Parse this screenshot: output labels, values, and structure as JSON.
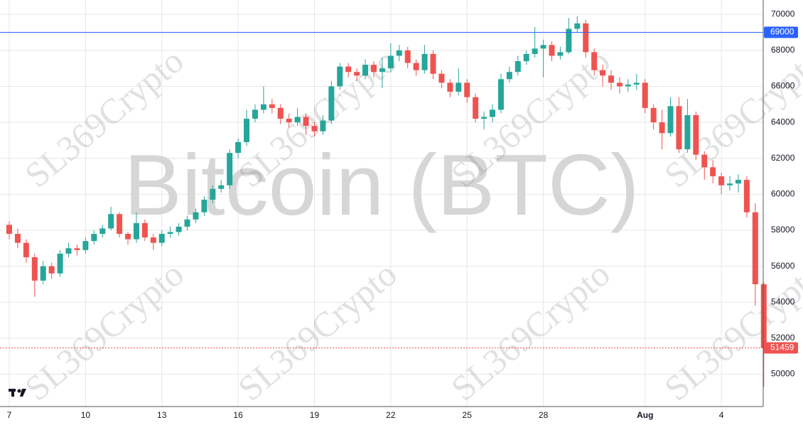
{
  "chart_data": {
    "type": "candlestick",
    "watermark": "Bitcoin (BTC)",
    "watermark_secondary": "SL369Crypto",
    "categories": [
      "7",
      null,
      null,
      null,
      null,
      null,
      null,
      null,
      null,
      "10",
      null,
      null,
      null,
      null,
      null,
      null,
      null,
      null,
      "13",
      null,
      null,
      null,
      null,
      null,
      null,
      null,
      null,
      "16",
      null,
      null,
      null,
      null,
      null,
      null,
      null,
      null,
      "19",
      null,
      null,
      null,
      null,
      null,
      null,
      null,
      null,
      "22",
      null,
      null,
      null,
      null,
      null,
      null,
      null,
      null,
      "25",
      null,
      null,
      null,
      null,
      null,
      null,
      null,
      null,
      "28",
      null,
      null,
      null,
      null,
      null,
      null,
      null,
      null,
      null,
      null,
      null,
      "Aug",
      null,
      null,
      null,
      null,
      null,
      null,
      null,
      null,
      "4",
      null,
      null,
      null,
      null,
      null
    ],
    "open": [
      58300,
      57800,
      57300,
      56500,
      55200,
      56000,
      55600,
      56700,
      57000,
      56900,
      57400,
      57800,
      58100,
      58900,
      57800,
      57500,
      58400,
      57600,
      57300,
      57800,
      57900,
      58200,
      58600,
      59000,
      59700,
      60300,
      60500,
      62300,
      62900,
      64200,
      64700,
      65000,
      64800,
      64200,
      64000,
      64300,
      63800,
      63500,
      64100,
      66000,
      67100,
      66800,
      66600,
      67200,
      66800,
      67000,
      67700,
      68000,
      67300,
      66900,
      67800,
      66700,
      66200,
      65700,
      66200,
      65400,
      64200,
      64300,
      64700,
      66400,
      66800,
      67400,
      67800,
      68100,
      68300,
      67700,
      67900,
      69200,
      69500,
      67900,
      66900,
      66600,
      66200,
      66000,
      66100,
      66200,
      64800,
      64000,
      63400,
      64900,
      62500,
      64400,
      62200,
      61500,
      61000,
      60500,
      60600,
      60800,
      59000,
      55000
    ],
    "high": [
      58500,
      58100,
      57500,
      56700,
      56300,
      56200,
      56900,
      57300,
      57200,
      57600,
      58000,
      58300,
      59300,
      59000,
      57900,
      59000,
      58600,
      57800,
      58000,
      58200,
      58400,
      58800,
      59200,
      59900,
      60500,
      60800,
      62500,
      63100,
      64700,
      65000,
      66000,
      65300,
      65000,
      64500,
      64800,
      64500,
      64000,
      64400,
      66300,
      67300,
      67300,
      67000,
      67500,
      67400,
      67600,
      68400,
      68300,
      68200,
      67500,
      68300,
      68000,
      66900,
      66400,
      67000,
      66400,
      65600,
      64600,
      65000,
      66700,
      67100,
      67700,
      68000,
      69300,
      68600,
      68500,
      68200,
      69800,
      69900,
      69700,
      68100,
      67200,
      66900,
      66500,
      66400,
      66700,
      66400,
      65000,
      64700,
      65400,
      65400,
      65300,
      64600,
      62400,
      61900,
      61200,
      61000,
      61100,
      61000,
      59500,
      55100
    ],
    "low": [
      57500,
      57000,
      56200,
      54300,
      55000,
      55300,
      55400,
      56500,
      56600,
      56700,
      57200,
      57600,
      58000,
      57600,
      57200,
      57300,
      57400,
      56900,
      57100,
      57600,
      57700,
      58000,
      58400,
      58800,
      59500,
      60100,
      60300,
      62000,
      62700,
      64000,
      64500,
      64500,
      63900,
      63700,
      63800,
      63300,
      63200,
      63300,
      63900,
      65800,
      66500,
      66300,
      66400,
      66500,
      65900,
      66800,
      67400,
      67000,
      66600,
      66700,
      66400,
      65900,
      65400,
      65500,
      65100,
      64000,
      63600,
      64000,
      64500,
      66200,
      66600,
      67200,
      67600,
      66500,
      67400,
      67500,
      67800,
      69000,
      67600,
      66600,
      66000,
      65800,
      65600,
      65700,
      65800,
      64500,
      63600,
      62500,
      63200,
      62300,
      62300,
      61900,
      60800,
      60600,
      60000,
      60200,
      60100,
      58700,
      53800,
      49300
    ],
    "close": [
      57800,
      57300,
      56500,
      55200,
      56000,
      55600,
      56700,
      57000,
      56900,
      57400,
      57800,
      58100,
      58900,
      57800,
      57500,
      58400,
      57600,
      57300,
      57800,
      57900,
      58200,
      58600,
      59000,
      59700,
      60300,
      60500,
      62300,
      62900,
      64200,
      64700,
      65000,
      64800,
      64200,
      64000,
      64300,
      63800,
      63500,
      64100,
      66000,
      67100,
      66800,
      66600,
      67200,
      66800,
      67000,
      67700,
      68000,
      67300,
      66900,
      67800,
      66700,
      66200,
      65700,
      66200,
      65400,
      64200,
      64300,
      64700,
      66400,
      66800,
      67400,
      67800,
      68100,
      68300,
      67700,
      67900,
      69200,
      69500,
      67900,
      66900,
      66600,
      66200,
      66000,
      66100,
      66200,
      64800,
      64000,
      63400,
      64900,
      62500,
      64400,
      62200,
      61500,
      61000,
      60500,
      60600,
      60800,
      59000,
      55000,
      51459
    ],
    "up_color": "#26a69a",
    "down_color": "#ef5350",
    "hline": 69000,
    "hline_color": "#2962ff",
    "ylim": [
      48200,
      70800
    ],
    "yticks": [
      50000,
      52000,
      54000,
      56000,
      58000,
      60000,
      62000,
      64000,
      66000,
      68000,
      70000
    ],
    "grid": true
  }
}
